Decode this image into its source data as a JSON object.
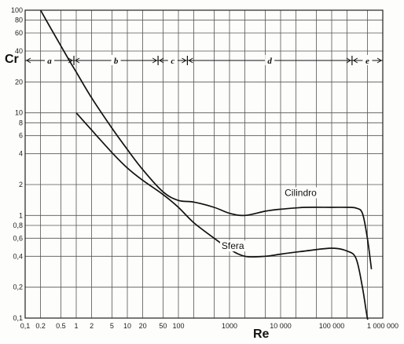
{
  "chart_data": {
    "type": "line",
    "title": "",
    "xlabel": "Re",
    "ylabel": "Cr",
    "x_scale": "log",
    "y_scale": "log",
    "xlim": [
      0.1,
      1000000
    ],
    "ylim": [
      0.1,
      100
    ],
    "grid": true,
    "x_tick_labels": [
      {
        "value": 0.1,
        "label": "0,1"
      },
      {
        "value": 0.2,
        "label": "0.2"
      },
      {
        "value": 0.5,
        "label": "0.5"
      },
      {
        "value": 1,
        "label": "1"
      },
      {
        "value": 2,
        "label": "2"
      },
      {
        "value": 5,
        "label": "5"
      },
      {
        "value": 10,
        "label": "10"
      },
      {
        "value": 20,
        "label": "20"
      },
      {
        "value": 50,
        "label": "50"
      },
      {
        "value": 100,
        "label": "100"
      },
      {
        "value": 1000,
        "label": "1000"
      },
      {
        "value": 10000,
        "label": "10 000"
      },
      {
        "value": 100000,
        "label": "100 000"
      },
      {
        "value": 1000000,
        "label": "1 000 000"
      }
    ],
    "y_tick_labels": [
      {
        "value": 100,
        "label": "100"
      },
      {
        "value": 80,
        "label": "80"
      },
      {
        "value": 60,
        "label": "60"
      },
      {
        "value": 40,
        "label": "40"
      },
      {
        "value": 20,
        "label": "20"
      },
      {
        "value": 10,
        "label": "10"
      },
      {
        "value": 8,
        "label": "8"
      },
      {
        "value": 6,
        "label": "6"
      },
      {
        "value": 4,
        "label": "4"
      },
      {
        "value": 2,
        "label": "2"
      },
      {
        "value": 1,
        "label": "1"
      },
      {
        "value": 0.8,
        "label": "0,8"
      },
      {
        "value": 0.6,
        "label": "0,6"
      },
      {
        "value": 0.4,
        "label": "0,4"
      },
      {
        "value": 0.2,
        "label": "0,2"
      },
      {
        "value": 0.1,
        "label": "0,1"
      }
    ],
    "regimes": [
      {
        "label": "a",
        "from": 0.1,
        "to": 0.9
      },
      {
        "label": "b",
        "from": 0.9,
        "to": 40
      },
      {
        "label": "c",
        "from": 40,
        "to": 150
      },
      {
        "label": "d",
        "from": 150,
        "to": 250000
      },
      {
        "label": "e",
        "from": 250000,
        "to": 1000000
      }
    ],
    "series": [
      {
        "name": "Cilindro",
        "x": [
          0.2,
          0.3,
          0.5,
          0.8,
          1,
          2,
          5,
          10,
          20,
          50,
          100,
          200,
          500,
          1000,
          2000,
          5000,
          10000,
          30000,
          100000,
          200000,
          300000,
          400000,
          500000,
          600000
        ],
        "y": [
          100,
          70,
          45,
          30,
          25,
          14,
          7.1,
          4.4,
          2.8,
          1.7,
          1.4,
          1.35,
          1.2,
          1.05,
          1.0,
          1.1,
          1.15,
          1.2,
          1.2,
          1.2,
          1.18,
          1.05,
          0.6,
          0.3
        ]
      },
      {
        "name": "Sfera",
        "x": [
          1,
          2,
          5,
          10,
          20,
          50,
          100,
          200,
          500,
          1000,
          2000,
          5000,
          10000,
          30000,
          100000,
          200000,
          300000,
          400000,
          500000,
          600000
        ],
        "y": [
          10,
          6.8,
          4.1,
          2.9,
          2.2,
          1.6,
          1.2,
          0.85,
          0.6,
          0.47,
          0.4,
          0.4,
          0.42,
          0.45,
          0.48,
          0.45,
          0.38,
          0.2,
          0.1,
          0.07
        ]
      }
    ]
  }
}
